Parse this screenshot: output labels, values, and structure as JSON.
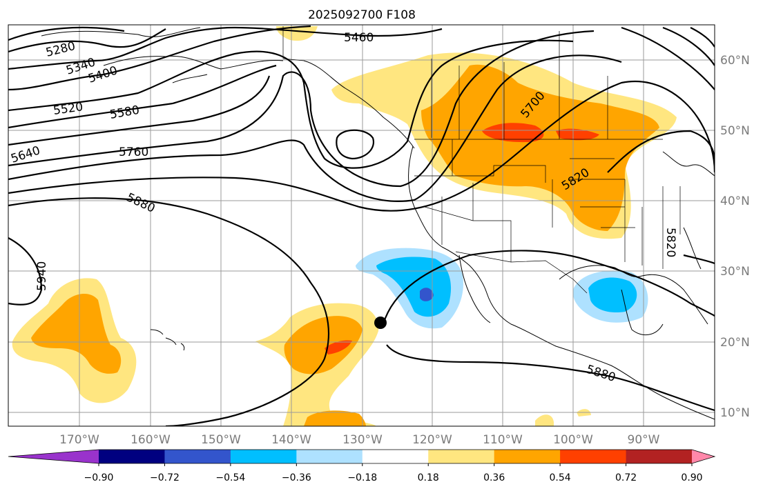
{
  "title": "2025092700 F108",
  "map": {
    "lon_labels": [
      "170°W",
      "160°W",
      "150°W",
      "140°W",
      "130°W",
      "120°W",
      "110°W",
      "100°W",
      "90°W"
    ],
    "lat_labels": [
      "60°N",
      "50°N",
      "40°N",
      "30°N",
      "20°N",
      "10°N"
    ],
    "gridlines": true,
    "marker": "black dot near 23°N 127°W"
  },
  "contour_labels": [
    "5280",
    "5340",
    "5400",
    "5460",
    "5520",
    "5580",
    "5640",
    "5700",
    "5760",
    "5820",
    "5820",
    "5880",
    "5880",
    "5940"
  ],
  "colorbar": {
    "ticks": [
      "−0.90",
      "−0.72",
      "−0.54",
      "−0.36",
      "−0.18",
      "0.18",
      "0.36",
      "0.54",
      "0.72",
      "0.90"
    ],
    "colors": [
      "#9933cc",
      "#000080",
      "#3355cc",
      "#00bfff",
      "#aee1ff",
      "#ffffff",
      "#ffe680",
      "#ffa500",
      "#ff4000",
      "#b22222",
      "#ff88aa"
    ]
  }
}
